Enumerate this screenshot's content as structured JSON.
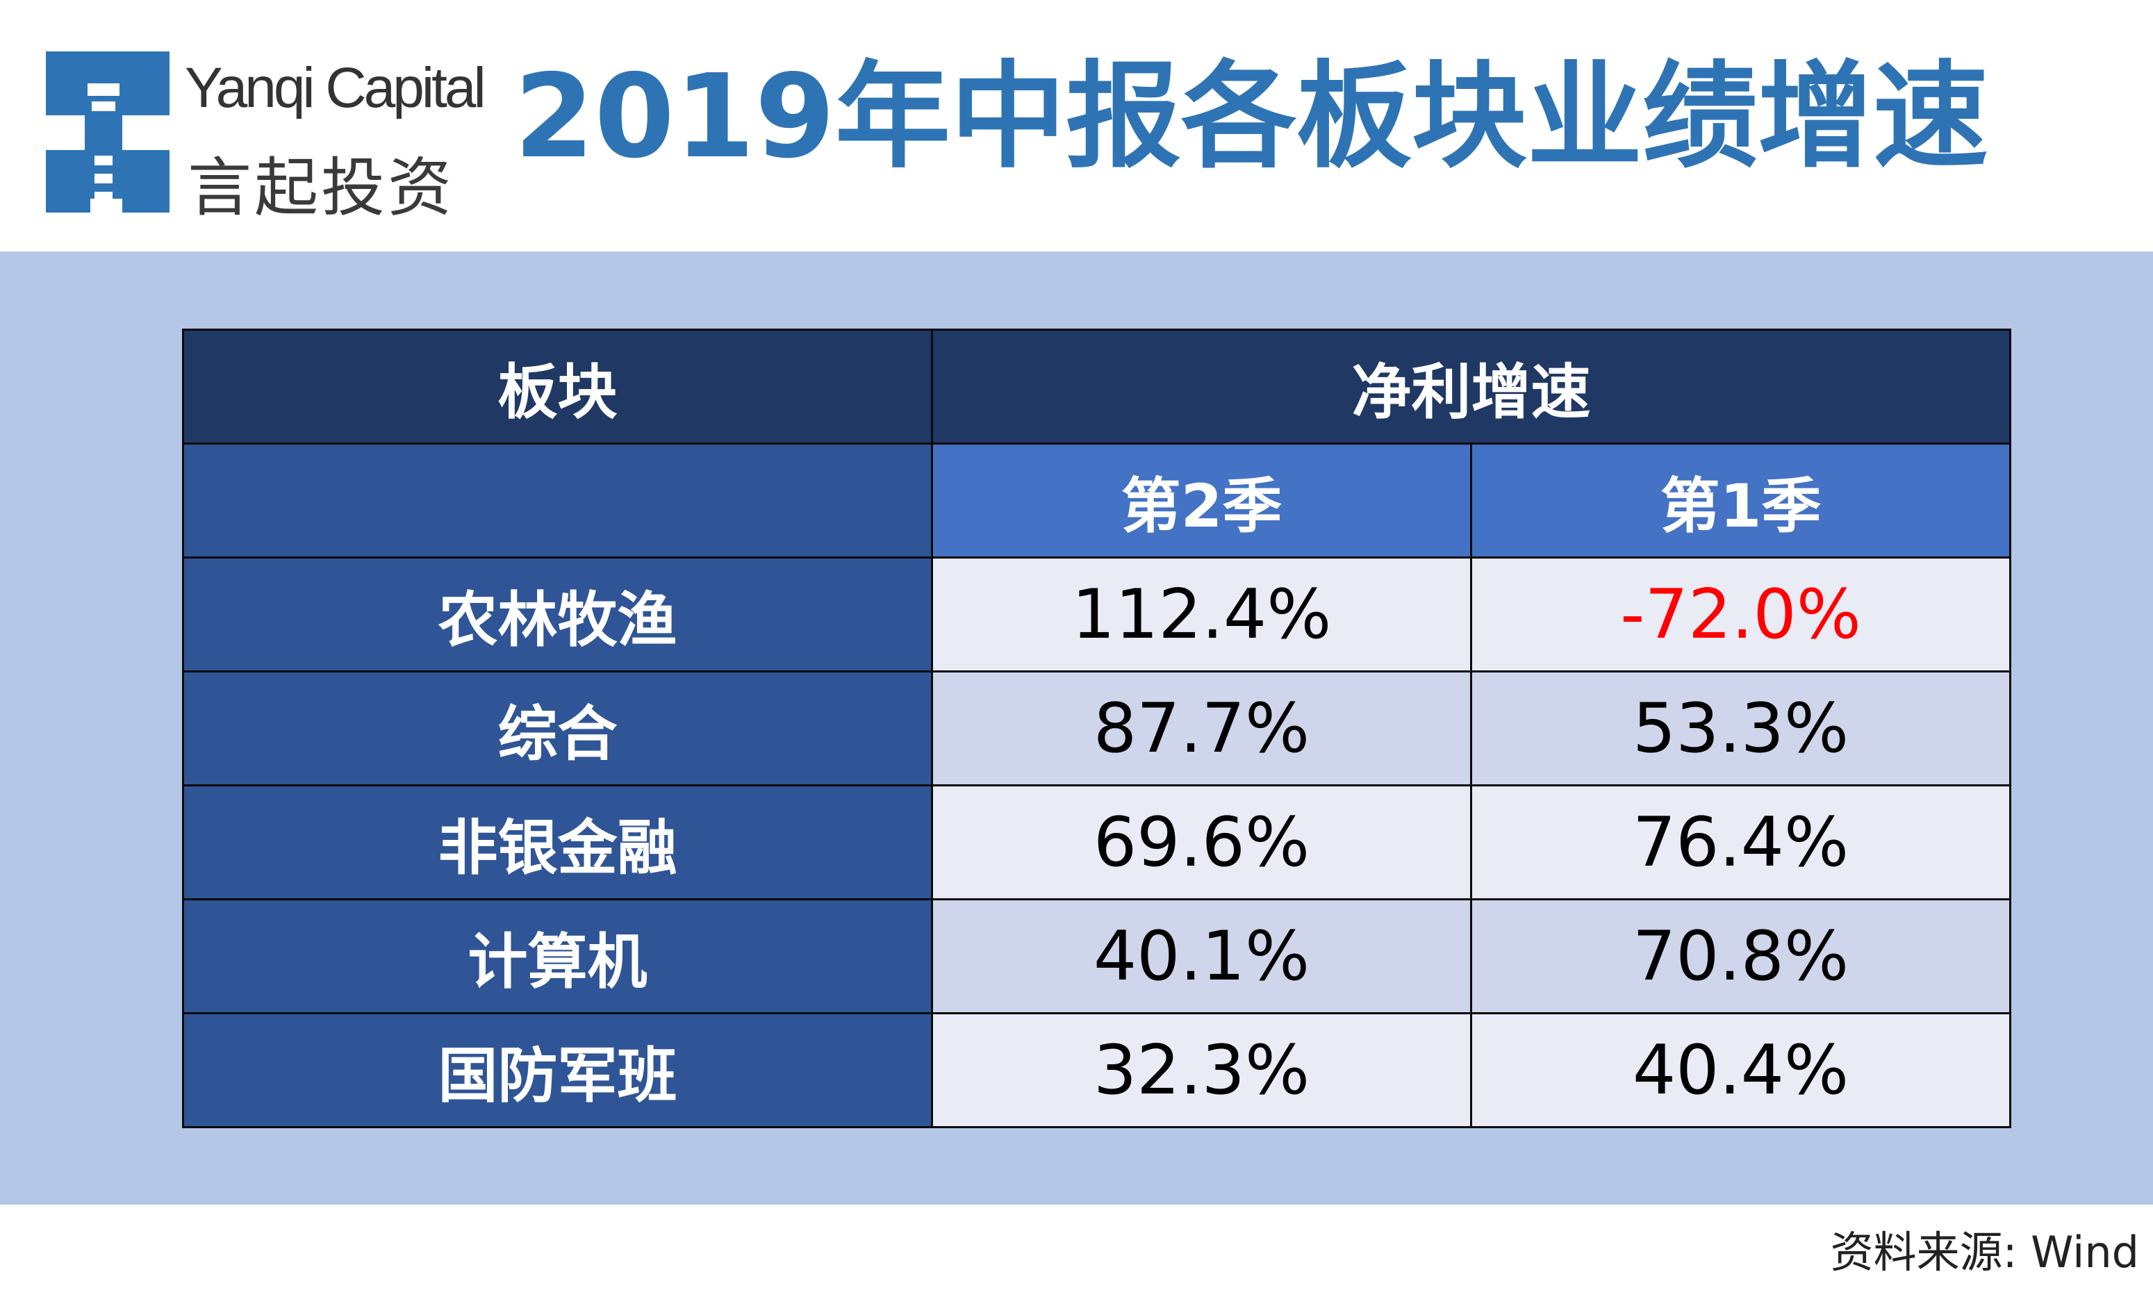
{
  "logo": {
    "name_en": "Yanqi Capital",
    "name_cn": "言起投资",
    "brand_color": "#2e74b5"
  },
  "title": "2019年中报各板块业绩增速",
  "colors": {
    "header_dark": "#203864",
    "header_sub": "#4472c4",
    "row_label": "#2f5597",
    "band": "#b4c7e7",
    "negative": "#ff0000"
  },
  "chart_data": {
    "type": "table",
    "headers": {
      "sector": "板块",
      "metric": "净利增速",
      "q2": "第2季",
      "q1": "第1季"
    },
    "rows": [
      {
        "sector": "农林牧渔",
        "q2": "112.4%",
        "q1": "-72.0%"
      },
      {
        "sector": "综合",
        "q2": "87.7%",
        "q1": "53.3%"
      },
      {
        "sector": "非银金融",
        "q2": "69.6%",
        "q1": "76.4%"
      },
      {
        "sector": "计算机",
        "q2": "40.1%",
        "q1": "70.8%"
      },
      {
        "sector": "国防军班",
        "q2": "32.3%",
        "q1": "40.4%"
      }
    ]
  },
  "source": "资料来源: Wind"
}
